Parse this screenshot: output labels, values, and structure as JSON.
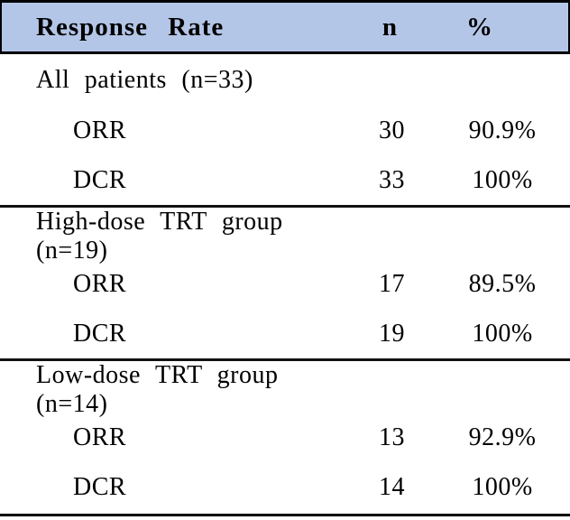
{
  "table": {
    "title": "Response Rate table",
    "colors": {
      "header_bg": "#b4c6e7",
      "border": "#000000",
      "text": "#000000"
    },
    "header": {
      "col1": "Response Rate",
      "col2": "n",
      "col3": "%"
    },
    "sections": [
      {
        "label": "All patients (n=33)",
        "rows": [
          {
            "name": "ORR",
            "n": "30",
            "pct": "90.9%"
          },
          {
            "name": "DCR",
            "n": "33",
            "pct": "100%"
          }
        ]
      },
      {
        "label": "High-dose TRT group (n=19)",
        "rows": [
          {
            "name": "ORR",
            "n": "17",
            "pct": "89.5%"
          },
          {
            "name": "DCR",
            "n": "19",
            "pct": "100%"
          }
        ]
      },
      {
        "label": "Low-dose TRT group (n=14)",
        "rows": [
          {
            "name": "ORR",
            "n": "13",
            "pct": "92.9%"
          },
          {
            "name": "DCR",
            "n": "14",
            "pct": "100%"
          }
        ]
      }
    ]
  },
  "chart_data": {
    "type": "table",
    "title": "Response Rate",
    "columns": [
      "Response Rate",
      "n",
      "%"
    ],
    "groups": [
      {
        "group": "All patients",
        "group_n": 33,
        "ORR_n": 30,
        "ORR_pct": 90.9,
        "DCR_n": 33,
        "DCR_pct": 100
      },
      {
        "group": "High-dose TRT group",
        "group_n": 19,
        "ORR_n": 17,
        "ORR_pct": 89.5,
        "DCR_n": 19,
        "DCR_pct": 100
      },
      {
        "group": "Low-dose TRT group",
        "group_n": 14,
        "ORR_n": 13,
        "ORR_pct": 92.9,
        "DCR_n": 14,
        "DCR_pct": 100
      }
    ]
  }
}
